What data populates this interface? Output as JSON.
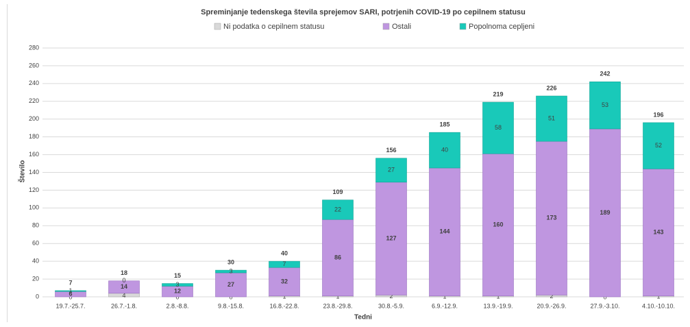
{
  "chart_data": {
    "type": "stacked_bar",
    "title": "Spreminjanje tedenskega števila sprejemov SARI, potrjenih COVID-19 po cepilnem statusu",
    "xlabel": "Tedni",
    "ylabel": "Število",
    "categories": [
      "19.7.-25.7.",
      "26.7.-1.8.",
      "2.8.-8.8.",
      "9.8.-15.8.",
      "16.8.-22.8.",
      "23.8.-29.8.",
      "30.8.-5.9.",
      "6.9.-12.9.",
      "13.9.-19.9.",
      "20.9.-26.9.",
      "27.9.-3.10.",
      "4.10.-10.10."
    ],
    "series": [
      {
        "name": "Ni podatka o cepilnem statusu",
        "color": "#d9d9d9",
        "values": [
          0,
          4,
          0,
          0,
          1,
          1,
          2,
          1,
          1,
          2,
          0,
          1
        ]
      },
      {
        "name": "Ostali",
        "color": "#bf96e0",
        "values": [
          6,
          14,
          12,
          27,
          32,
          86,
          127,
          144,
          160,
          173,
          189,
          143
        ]
      },
      {
        "name": "Popolnoma cepljeni",
        "color": "#19c9b9",
        "values": [
          1,
          0,
          3,
          3,
          7,
          22,
          27,
          40,
          58,
          51,
          53,
          52
        ]
      }
    ],
    "totals": [
      7,
      18,
      15,
      30,
      40,
      109,
      156,
      185,
      219,
      226,
      242,
      196
    ],
    "ylim": [
      0,
      280
    ],
    "yticks": [
      0,
      20,
      40,
      60,
      80,
      100,
      120,
      140,
      160,
      180,
      200,
      220,
      240,
      260,
      280
    ],
    "grid": true,
    "legend": "top"
  }
}
